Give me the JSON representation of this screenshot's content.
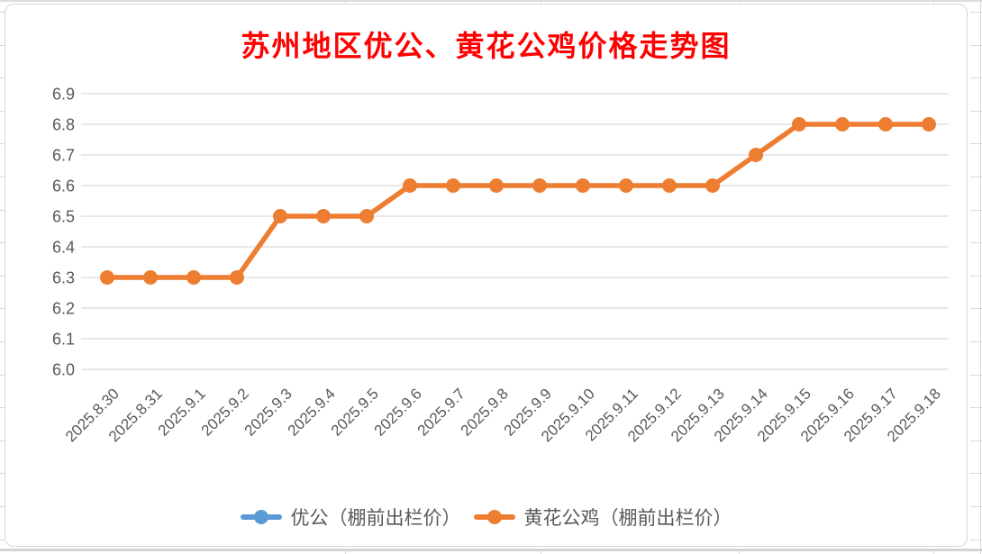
{
  "chart": {
    "title_color": "#FF0000",
    "axis_text_color": "#595959",
    "gridline_color": "#D9D9D9",
    "background_color": "#FFFFFF"
  },
  "chart_data": {
    "type": "line",
    "title": "苏州地区优公、黄花公鸡价格走势图",
    "categories": [
      "2025.8.30",
      "2025.8.31",
      "2025.9.1",
      "2025.9.2",
      "2025.9.3",
      "2025.9.4",
      "2025.9.5",
      "2025.9.6",
      "2025.9.7",
      "2025.9.8",
      "2025.9.9",
      "2025.9.10",
      "2025.9.11",
      "2025.9.12",
      "2025.9.13",
      "2025.9.14",
      "2025.9.15",
      "2025.9.16",
      "2025.9.17",
      "2025.9.18"
    ],
    "series": [
      {
        "name": "优公（棚前出栏价）",
        "color": "#5B9BD5",
        "values": null,
        "visible_in_plot": false
      },
      {
        "name": "黄花公鸡（棚前出栏价）",
        "color": "#ED7D31",
        "values": [
          6.3,
          6.3,
          6.3,
          6.3,
          6.5,
          6.5,
          6.5,
          6.6,
          6.6,
          6.6,
          6.6,
          6.6,
          6.6,
          6.6,
          6.6,
          6.7,
          6.8,
          6.8,
          6.8,
          6.8
        ],
        "visible_in_plot": true
      }
    ],
    "xlabel": "",
    "ylabel": "",
    "ylim": [
      6.0,
      6.9
    ],
    "ytick_labels": [
      "6.0",
      "6.1",
      "6.2",
      "6.3",
      "6.4",
      "6.5",
      "6.6",
      "6.7",
      "6.8",
      "6.9"
    ],
    "grid": true,
    "legend_position": "bottom",
    "x_tick_rotation_deg": 45
  }
}
